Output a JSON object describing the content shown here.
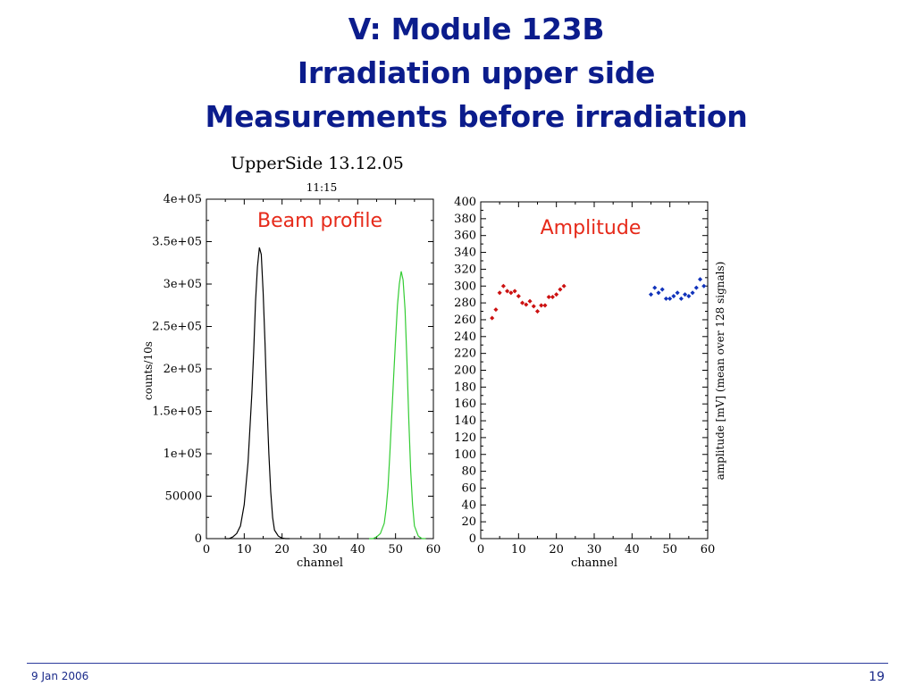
{
  "slide": {
    "title_lines": [
      "V: Module 123B",
      "Irradiation upper side",
      "Measurements before irradiation"
    ],
    "plot_title": "UpperSide 13.12.05",
    "plot_subtitle": "11:15",
    "footer_date": "9 Jan 2006",
    "page_number": "19"
  },
  "colors": {
    "title": "#0b1c8c",
    "annotation": "#e62a1a",
    "series_black": "#000000",
    "series_green": "#33cc33",
    "series_red": "#cc1111",
    "series_blue": "#1133bb"
  },
  "chart_data": [
    {
      "type": "line",
      "annotation": "Beam profile",
      "xlabel": "channel",
      "ylabel": "counts/10s",
      "xlim": [
        0,
        60
      ],
      "ylim": [
        0,
        400000
      ],
      "xticks": [
        0,
        10,
        20,
        30,
        40,
        50,
        60
      ],
      "yticks": [
        0,
        50000,
        100000,
        150000,
        200000,
        250000,
        300000,
        350000,
        400000
      ],
      "ytick_labels": [
        "0",
        "50000",
        "1e+05",
        "1.5e+05",
        "2e+05",
        "2.5e+05",
        "3e+05",
        "3.5e+05",
        "4e+05"
      ],
      "series": [
        {
          "color": "#000000",
          "x": [
            5,
            6,
            7,
            8,
            9,
            10,
            11,
            12,
            12.5,
            13,
            13.5,
            14,
            14.5,
            15,
            15.5,
            16,
            16.5,
            17,
            17.5,
            18,
            19,
            20,
            21,
            22
          ],
          "y": [
            0,
            0,
            2000,
            6000,
            15000,
            40000,
            90000,
            170000,
            220000,
            280000,
            320000,
            343000,
            335000,
            290000,
            230000,
            160000,
            100000,
            55000,
            25000,
            10000,
            3000,
            500,
            0,
            0
          ]
        },
        {
          "color": "#33cc33",
          "x": [
            43,
            44,
            45,
            46,
            47,
            47.5,
            48,
            48.5,
            49,
            49.5,
            50,
            50.5,
            51,
            51.5,
            52,
            52.5,
            53,
            53.5,
            54,
            54.5,
            55,
            56,
            57,
            58
          ],
          "y": [
            0,
            0,
            2000,
            6000,
            18000,
            35000,
            60000,
            100000,
            145000,
            190000,
            235000,
            275000,
            300000,
            315000,
            305000,
            270000,
            210000,
            140000,
            80000,
            40000,
            15000,
            3000,
            0,
            0
          ]
        }
      ]
    },
    {
      "type": "scatter",
      "annotation": "Amplitude",
      "xlabel": "channel",
      "ylabel": "amplitude [mV] (mean over 128 signals)",
      "xlim": [
        0,
        60
      ],
      "ylim": [
        0,
        400
      ],
      "xticks": [
        0,
        10,
        20,
        30,
        40,
        50,
        60
      ],
      "yticks": [
        0,
        20,
        40,
        60,
        80,
        100,
        120,
        140,
        160,
        180,
        200,
        220,
        240,
        260,
        280,
        300,
        320,
        340,
        360,
        380,
        400
      ],
      "series": [
        {
          "color": "#cc1111",
          "x": [
            3,
            4,
            5,
            6,
            7,
            8,
            9,
            10,
            11,
            12,
            13,
            14,
            15,
            16,
            17,
            18,
            19,
            20,
            21,
            22
          ],
          "y": [
            262,
            272,
            292,
            300,
            294,
            292,
            294,
            288,
            280,
            278,
            282,
            276,
            270,
            277,
            277,
            287,
            287,
            290,
            296,
            300
          ]
        },
        {
          "color": "#1133bb",
          "x": [
            45,
            46,
            47,
            48,
            49,
            50,
            51,
            52,
            53,
            54,
            55,
            56,
            57,
            58,
            59
          ],
          "y": [
            290,
            298,
            292,
            296,
            285,
            285,
            288,
            292,
            285,
            290,
            288,
            292,
            298,
            308,
            300
          ]
        }
      ]
    }
  ]
}
